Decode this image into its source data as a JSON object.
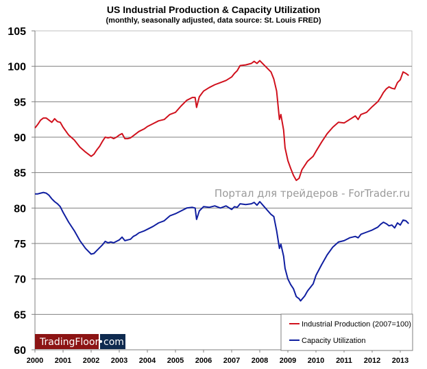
{
  "colors": {
    "ip": "#d0101c",
    "cu": "#0f1ea0",
    "logo_red": "#8c1414",
    "logo_navy": "#0e2a4f",
    "grid": "#7f7f7f",
    "watermark": "#9a9a9a"
  },
  "watermark": "Портал для трейдеров - ForTrader.ru",
  "logo": {
    "part1": "TradingFloor",
    "dot": "•",
    "part2": "com"
  },
  "chart_data": {
    "type": "line",
    "title": "US Industrial Production & Capacity Utilization",
    "subtitle": "(monthly, seasonally adjusted, data source: St. Louis FRED)",
    "xlabel": "",
    "ylabel": "",
    "xlim": [
      2000,
      2013.5
    ],
    "ylim": [
      60,
      105
    ],
    "yticks": [
      "105",
      "100",
      "95",
      "90",
      "85",
      "80",
      "75",
      "70",
      "65",
      "60"
    ],
    "ytick_values": [
      105,
      100,
      95,
      90,
      85,
      80,
      75,
      70,
      65,
      60
    ],
    "xticks": [
      "2000",
      "2001",
      "2002",
      "2003",
      "2004",
      "2005",
      "2006",
      "2007",
      "2008",
      "2009",
      "2010",
      "2011",
      "2012",
      "2013"
    ],
    "xtick_values": [
      2000,
      2001,
      2002,
      2003,
      2004,
      2005,
      2006,
      2007,
      2008,
      2009,
      2010,
      2011,
      2012,
      2013
    ],
    "grid": true,
    "legend_position": "bottom-right",
    "series": [
      {
        "name": "Industrial Production (2007=100)",
        "color": "#d0101c",
        "x": [
          2000.0,
          2000.1,
          2000.2,
          2000.3,
          2000.4,
          2000.5,
          2000.6,
          2000.7,
          2000.8,
          2000.9,
          2001.0,
          2001.2,
          2001.4,
          2001.6,
          2001.8,
          2002.0,
          2002.1,
          2002.2,
          2002.3,
          2002.4,
          2002.5,
          2002.6,
          2002.7,
          2002.8,
          2002.9,
          2003.0,
          2003.1,
          2003.2,
          2003.3,
          2003.4,
          2003.5,
          2003.6,
          2003.7,
          2003.9,
          2004.0,
          2004.2,
          2004.4,
          2004.6,
          2004.8,
          2005.0,
          2005.2,
          2005.4,
          2005.6,
          2005.7,
          2005.75,
          2005.85,
          2006.0,
          2006.2,
          2006.4,
          2006.6,
          2006.8,
          2007.0,
          2007.1,
          2007.2,
          2007.3,
          2007.5,
          2007.7,
          2007.8,
          2007.9,
          2008.0,
          2008.2,
          2008.4,
          2008.5,
          2008.6,
          2008.7,
          2008.75,
          2008.85,
          2008.9,
          2009.0,
          2009.1,
          2009.2,
          2009.3,
          2009.4,
          2009.5,
          2009.6,
          2009.7,
          2009.9,
          2010.0,
          2010.2,
          2010.4,
          2010.6,
          2010.8,
          2011.0,
          2011.2,
          2011.4,
          2011.5,
          2011.6,
          2011.8,
          2012.0,
          2012.2,
          2012.3,
          2012.4,
          2012.5,
          2012.6,
          2012.7,
          2012.8,
          2012.9,
          2013.0,
          2013.1,
          2013.2,
          2013.3
        ],
        "values": [
          91.3,
          91.8,
          92.4,
          92.7,
          92.7,
          92.4,
          92.1,
          92.6,
          92.2,
          92.1,
          91.4,
          90.3,
          89.6,
          88.6,
          87.9,
          87.3,
          87.6,
          88.2,
          88.7,
          89.4,
          90.0,
          89.9,
          90.0,
          89.8,
          90.0,
          90.3,
          90.5,
          89.8,
          89.8,
          89.9,
          90.2,
          90.5,
          90.8,
          91.2,
          91.5,
          91.9,
          92.3,
          92.5,
          93.2,
          93.5,
          94.4,
          95.2,
          95.6,
          95.6,
          94.2,
          95.7,
          96.5,
          97.0,
          97.4,
          97.7,
          98.0,
          98.5,
          99.0,
          99.4,
          100.1,
          100.2,
          100.4,
          100.7,
          100.4,
          100.8,
          100.0,
          99.2,
          98.2,
          96.5,
          92.5,
          93.2,
          91.0,
          88.5,
          86.7,
          85.6,
          84.6,
          83.9,
          84.2,
          85.4,
          86.0,
          86.6,
          87.3,
          88.0,
          89.3,
          90.5,
          91.4,
          92.1,
          92.0,
          92.5,
          93.0,
          92.5,
          93.2,
          93.5,
          94.3,
          95.0,
          95.6,
          96.3,
          96.8,
          97.1,
          96.9,
          96.8,
          97.7,
          98.1,
          99.2,
          99.0,
          98.7
        ]
      },
      {
        "name": "Capacity Utilization",
        "color": "#0f1ea0",
        "x": [
          2000.0,
          2000.1,
          2000.2,
          2000.3,
          2000.4,
          2000.5,
          2000.6,
          2000.7,
          2000.8,
          2000.9,
          2001.0,
          2001.2,
          2001.4,
          2001.6,
          2001.8,
          2002.0,
          2002.1,
          2002.2,
          2002.3,
          2002.4,
          2002.5,
          2002.6,
          2002.7,
          2002.8,
          2002.9,
          2003.0,
          2003.1,
          2003.2,
          2003.3,
          2003.4,
          2003.5,
          2003.6,
          2003.7,
          2003.9,
          2004.0,
          2004.2,
          2004.4,
          2004.6,
          2004.8,
          2005.0,
          2005.2,
          2005.4,
          2005.6,
          2005.7,
          2005.75,
          2005.85,
          2006.0,
          2006.2,
          2006.4,
          2006.6,
          2006.8,
          2007.0,
          2007.1,
          2007.2,
          2007.3,
          2007.5,
          2007.7,
          2007.8,
          2007.9,
          2008.0,
          2008.2,
          2008.4,
          2008.5,
          2008.6,
          2008.7,
          2008.75,
          2008.85,
          2008.9,
          2009.0,
          2009.1,
          2009.2,
          2009.3,
          2009.4,
          2009.45,
          2009.6,
          2009.7,
          2009.9,
          2010.0,
          2010.2,
          2010.4,
          2010.6,
          2010.8,
          2011.0,
          2011.2,
          2011.4,
          2011.5,
          2011.6,
          2011.8,
          2012.0,
          2012.2,
          2012.3,
          2012.4,
          2012.5,
          2012.6,
          2012.7,
          2012.8,
          2012.9,
          2013.0,
          2013.1,
          2013.2,
          2013.3
        ],
        "values": [
          82.0,
          82.0,
          82.1,
          82.2,
          82.1,
          81.8,
          81.3,
          80.9,
          80.6,
          80.2,
          79.4,
          78.0,
          76.8,
          75.4,
          74.3,
          73.5,
          73.6,
          74.0,
          74.4,
          74.8,
          75.3,
          75.1,
          75.2,
          75.1,
          75.3,
          75.5,
          75.9,
          75.4,
          75.5,
          75.6,
          76.0,
          76.2,
          76.5,
          76.8,
          77.0,
          77.4,
          77.9,
          78.2,
          78.9,
          79.2,
          79.6,
          80.0,
          80.1,
          80.0,
          78.4,
          79.6,
          80.2,
          80.1,
          80.3,
          80.0,
          80.3,
          79.8,
          80.2,
          80.1,
          80.6,
          80.5,
          80.6,
          80.8,
          80.4,
          80.9,
          80.0,
          79.1,
          78.8,
          76.8,
          74.3,
          74.9,
          73.2,
          71.5,
          70.0,
          69.2,
          68.6,
          67.5,
          67.2,
          66.9,
          67.6,
          68.3,
          69.3,
          70.5,
          72.0,
          73.4,
          74.5,
          75.2,
          75.4,
          75.8,
          76.0,
          75.8,
          76.3,
          76.6,
          76.9,
          77.3,
          77.7,
          78.0,
          77.8,
          77.5,
          77.6,
          77.2,
          77.9,
          77.6,
          78.3,
          78.2,
          77.8
        ]
      }
    ]
  }
}
